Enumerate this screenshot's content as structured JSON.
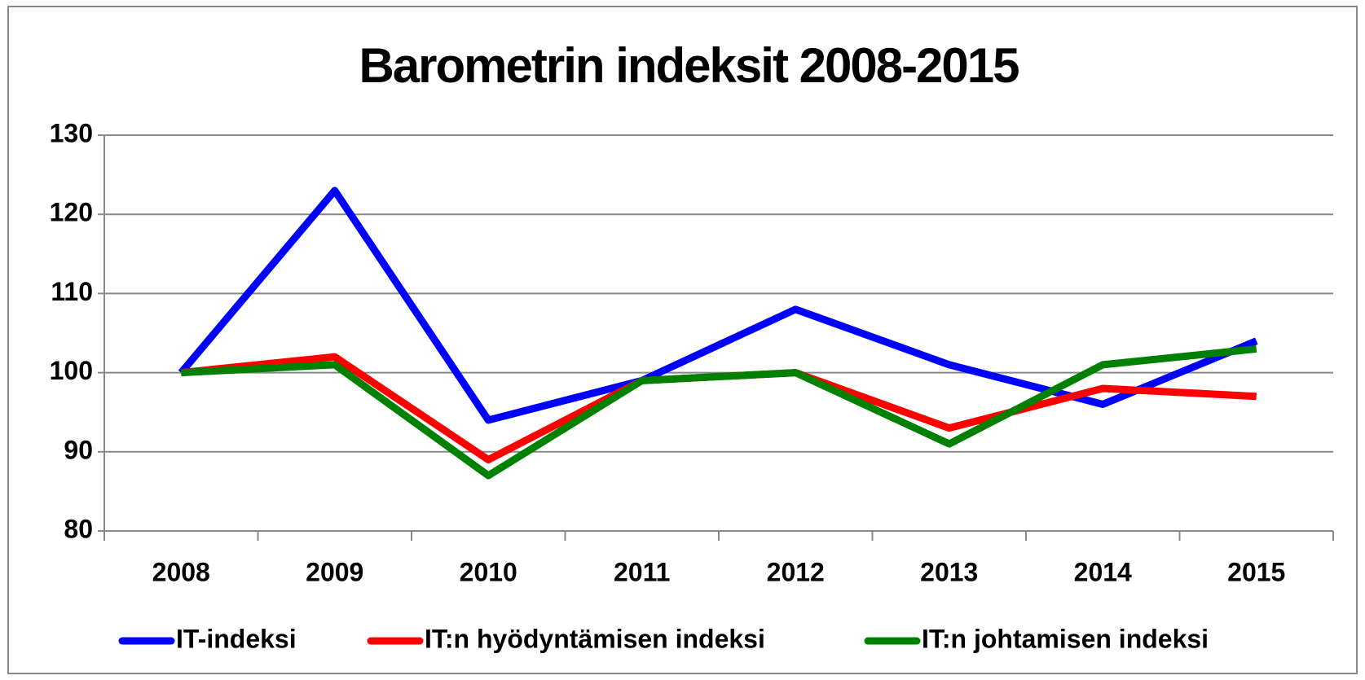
{
  "chart_data": {
    "type": "line",
    "title": "Barometrin indeksit 2008-2015",
    "categories": [
      "2008",
      "2009",
      "2010",
      "2011",
      "2012",
      "2013",
      "2014",
      "2015"
    ],
    "series": [
      {
        "name": "IT-indeksi",
        "color": "#0000ff",
        "values": [
          100,
          123,
          94,
          99,
          108,
          101,
          96,
          104
        ]
      },
      {
        "name": "IT:n hyödyntämisen indeksi",
        "color": "#ff0000",
        "values": [
          100,
          102,
          89,
          99,
          100,
          93,
          98,
          97
        ]
      },
      {
        "name": "IT:n johtamisen indeksi",
        "color": "#008000",
        "values": [
          100,
          101,
          87,
          99,
          100,
          91,
          101,
          103
        ]
      }
    ],
    "ylim": [
      80,
      130
    ],
    "yticks": [
      80,
      90,
      100,
      110,
      120,
      130
    ],
    "grid": true,
    "legend": "bottom"
  }
}
